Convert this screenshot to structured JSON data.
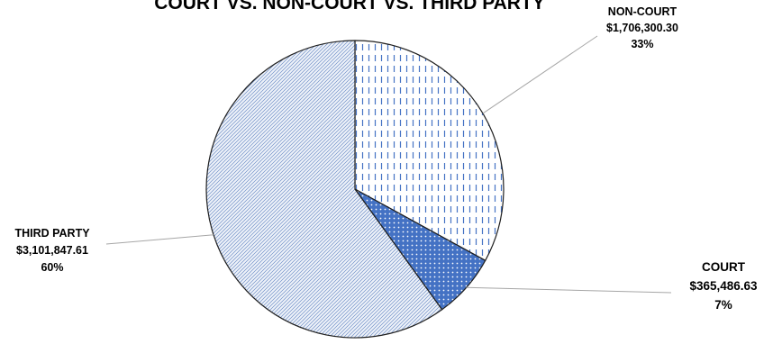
{
  "chart_data": {
    "type": "pie",
    "title": "COURT VS. NON-COURT VS. THIRD PARTY",
    "start": "top",
    "direction": "clockwise",
    "slices": [
      {
        "label": "NON-COURT",
        "amount": "$1,706,300.30",
        "percent_label": "33%",
        "value": 1706300.3,
        "fill_color": "#ffffff",
        "pattern_color": "#4472c4",
        "pattern": "dashed-vertical"
      },
      {
        "label": "COURT",
        "amount": "$365,486.63",
        "percent_label": "7%",
        "value": 365486.63,
        "fill_color": "#4472c4",
        "pattern_color": "#ffffff",
        "pattern": "dotted"
      },
      {
        "label": "THIRD PARTY",
        "amount": "$3,101,847.61",
        "percent_label": "60%",
        "value": 3101847.61,
        "fill_color": "#dde6f4",
        "pattern_color": "#6f8fc7",
        "pattern": "diagonal"
      }
    ],
    "legend": "none"
  }
}
